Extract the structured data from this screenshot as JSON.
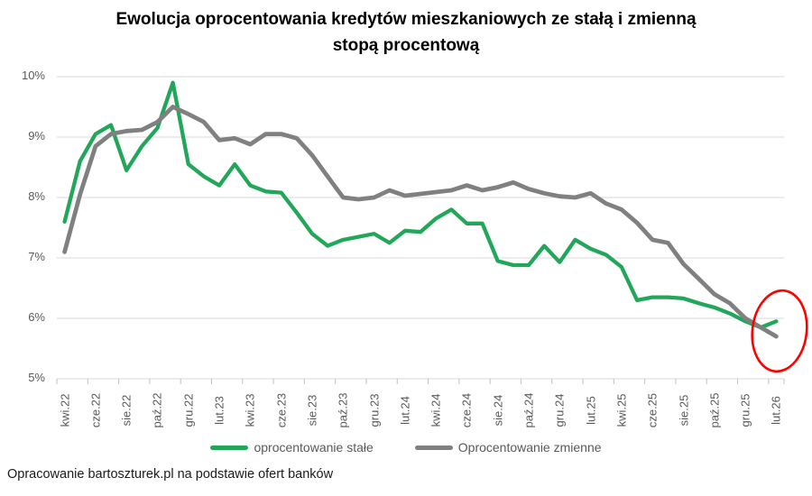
{
  "title_lines": [
    "Ewolucja oprocentowania kredytów mieszkaniowych ze stałą i zmienną",
    "stopą procentową"
  ],
  "footer": {
    "source": "Opracowanie bartoszturek.pl na podstawie ofert banków"
  },
  "chart_data": {
    "type": "line",
    "title": "Ewolucja oprocentowania kredytów mieszkaniowych ze stałą i zmienną stopą procentową",
    "grid": true,
    "legend_position": "bottom",
    "y_axis": {
      "min": 5,
      "max": 10,
      "step": 1,
      "format": "percent",
      "tick_labels": [
        "10%",
        "9%",
        "8%",
        "7%",
        "6%",
        "5%"
      ]
    },
    "x_tick_labels": [
      "kwi.22",
      "cze.22",
      "sie.22",
      "paź.22",
      "gru.22",
      "lut.23",
      "kwi.23",
      "cze.23",
      "sie.23",
      "paź.23",
      "gru.23",
      "lut.24",
      "kwi.24",
      "cze.24",
      "sie.24",
      "paź.24",
      "gru.24",
      "lut.25",
      "kwi.25",
      "cze.25",
      "sie.25",
      "paź.25",
      "gru.25",
      "lut.26"
    ],
    "x_categories_monthly": [
      "kwi.22",
      "maj.22",
      "cze.22",
      "lip.22",
      "sie.22",
      "wrz.22",
      "paź.22",
      "lis.22",
      "gru.22",
      "sty.23",
      "lut.23",
      "mar.23",
      "kwi.23",
      "maj.23",
      "cze.23",
      "lip.23",
      "sie.23",
      "wrz.23",
      "paź.23",
      "lis.23",
      "gru.23",
      "sty.24",
      "lut.24",
      "mar.24",
      "kwi.24",
      "maj.24",
      "cze.24",
      "lip.24",
      "sie.24",
      "wrz.24",
      "paź.24",
      "lis.24",
      "gru.24",
      "sty.25",
      "lut.25",
      "mar.25",
      "kwi.25",
      "maj.25",
      "cze.25",
      "lip.25",
      "sie.25",
      "wrz.25",
      "paź.25",
      "lis.25",
      "gru.25",
      "sty.26",
      "lut.26"
    ],
    "series": [
      {
        "name": "oprocentowanie stałe",
        "color": "#22A75A",
        "stroke_width": 4.3,
        "values": [
          7.6,
          8.6,
          9.05,
          9.2,
          8.45,
          8.85,
          9.15,
          9.9,
          8.55,
          8.35,
          8.2,
          8.55,
          8.2,
          8.1,
          8.08,
          7.75,
          7.4,
          7.2,
          7.3,
          7.35,
          7.4,
          7.25,
          7.45,
          7.43,
          7.65,
          7.8,
          7.57,
          7.57,
          6.95,
          6.88,
          6.88,
          7.2,
          6.93,
          7.3,
          7.15,
          7.05,
          6.85,
          6.3,
          6.35,
          6.35,
          6.33,
          6.25,
          6.18,
          6.08,
          5.95,
          5.85,
          5.95
        ]
      },
      {
        "name": "Oprocentowanie zmienne",
        "color": "#808080",
        "stroke_width": 4.8,
        "values": [
          7.1,
          8.05,
          8.85,
          9.05,
          9.1,
          9.12,
          9.25,
          9.5,
          9.38,
          9.25,
          8.95,
          8.98,
          8.88,
          9.05,
          9.05,
          8.98,
          8.7,
          8.35,
          8.0,
          7.97,
          8.0,
          8.12,
          8.03,
          8.06,
          8.09,
          8.12,
          8.2,
          8.12,
          8.17,
          8.25,
          8.14,
          8.07,
          8.02,
          8.0,
          8.07,
          7.9,
          7.8,
          7.58,
          7.3,
          7.25,
          6.9,
          6.65,
          6.4,
          6.25,
          6.0,
          5.85,
          5.7
        ]
      }
    ],
    "annotation": {
      "shape": "ellipse",
      "color": "#FF0000",
      "target": "końcowe wartości lut.26"
    },
    "colors": {
      "grid": "#D9D9D9",
      "axis_tick": "#C0C0C0",
      "axis_text": "#595959"
    }
  }
}
